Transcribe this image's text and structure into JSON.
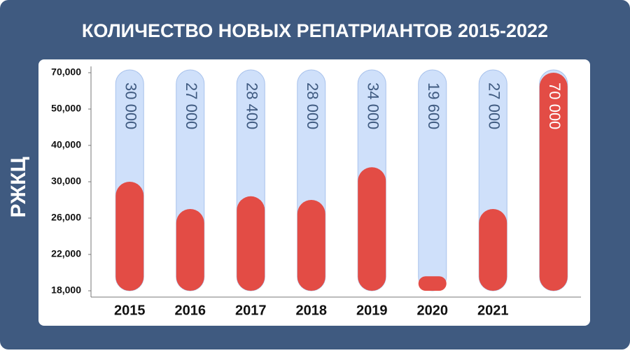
{
  "chart_data": {
    "type": "bar",
    "title": "КОЛИЧЕСТВО НОВЫХ РЕПАТРИАНТОВ  2015-2022",
    "logo": "РЖКЦ",
    "categories": [
      "2015",
      "2016",
      "2017",
      "2018",
      "2019",
      "2020",
      "2021",
      null
    ],
    "values": [
      30000,
      27000,
      28400,
      28000,
      34000,
      19600,
      27000,
      70000
    ],
    "value_labels": [
      "30 000",
      "27 000",
      "28 400",
      "28 000",
      "34 000",
      "19 600",
      "27 000",
      "70 000"
    ],
    "color": "#e34c45",
    "track_color": "#cfe0fa",
    "ylim": [
      18000,
      70000
    ],
    "yticks": [
      {
        "value": 18000,
        "label": "18,000"
      },
      {
        "value": 22000,
        "label": "22,000"
      },
      {
        "value": 26000,
        "label": "26,000"
      },
      {
        "value": 30000,
        "label": "30,000"
      },
      {
        "value": 40000,
        "label": "40,000"
      },
      {
        "value": 50000,
        "label": "50,000"
      },
      {
        "value": 70000,
        "label": "70,000"
      }
    ]
  }
}
